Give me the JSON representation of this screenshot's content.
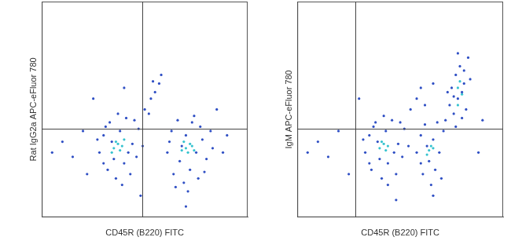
{
  "chart_data": [
    {
      "type": "scatter",
      "x_label": "CD45R (B220) FITC",
      "y_label": "Rat IgG2a APC-eFluor 780",
      "xlim": [
        0,
        100
      ],
      "ylim": [
        0,
        100
      ],
      "tick_labels": false,
      "grid": false,
      "gates": {
        "x": 49,
        "y": 41
      },
      "series": [
        {
          "color": "#2f4fc4",
          "x": [
            28,
            30,
            32,
            33,
            35,
            36,
            38,
            40,
            41,
            43,
            44,
            46,
            47,
            30,
            34,
            39,
            45,
            27,
            42,
            37,
            49,
            31,
            61,
            63,
            64,
            66,
            67,
            69,
            70,
            72,
            73,
            75,
            76,
            78,
            80,
            82,
            62,
            68,
            74,
            79,
            83,
            65,
            71,
            77,
            50,
            53,
            55,
            57,
            52,
            58,
            54,
            10,
            15,
            20,
            22,
            5,
            88,
            90,
            48,
            70,
            25,
            85,
            40
          ],
          "values": [
            30,
            38,
            22,
            44,
            27,
            18,
            40,
            25,
            46,
            20,
            34,
            28,
            41,
            25,
            35,
            15,
            45,
            36,
            30,
            48,
            33,
            42,
            30,
            40,
            20,
            45,
            26,
            16,
            38,
            22,
            44,
            30,
            18,
            36,
            27,
            40,
            35,
            33,
            47,
            21,
            32,
            14,
            12,
            42,
            50,
            55,
            58,
            62,
            48,
            66,
            63,
            35,
            28,
            40,
            20,
            30,
            30,
            38,
            10,
            5,
            55,
            50,
            60
          ]
        },
        {
          "color": "#36c3cf",
          "x": [
            35,
            37,
            38,
            36,
            39,
            40,
            34,
            70,
            72,
            71,
            73,
            69,
            74,
            68
          ],
          "values": [
            32,
            34,
            31,
            35,
            33,
            36,
            30,
            32,
            34,
            30,
            33,
            35,
            31,
            31
          ]
        }
      ]
    },
    {
      "type": "scatter",
      "x_label": "CD45R (B220) FITC",
      "y_label": "IgM APC-eFluor 780",
      "xlim": [
        0,
        100
      ],
      "ylim": [
        0,
        100
      ],
      "tick_labels": false,
      "grid": false,
      "gates": {
        "x": 28,
        "y": 41
      },
      "series": [
        {
          "color": "#2f4fc4",
          "x": [
            33,
            35,
            36,
            38,
            40,
            41,
            43,
            44,
            46,
            48,
            49,
            51,
            52,
            35,
            39,
            44,
            50,
            32,
            47,
            42,
            54,
            37,
            58,
            60,
            61,
            62,
            64,
            65,
            66,
            67,
            68,
            69,
            70,
            63,
            66,
            60,
            71,
            72,
            74,
            75,
            76,
            77,
            78,
            79,
            80,
            81,
            82,
            83,
            77,
            73,
            80,
            84,
            78,
            76,
            81,
            55,
            58,
            60,
            62,
            10,
            15,
            20,
            25,
            5,
            88,
            90,
            48,
            30,
            66
          ],
          "values": [
            30,
            38,
            22,
            44,
            27,
            18,
            40,
            25,
            45,
            20,
            34,
            28,
            41,
            25,
            35,
            15,
            44,
            36,
            30,
            47,
            33,
            42,
            30,
            38,
            20,
            43,
            26,
            15,
            36,
            22,
            44,
            30,
            18,
            33,
            10,
            25,
            40,
            45,
            52,
            60,
            48,
            66,
            55,
            70,
            58,
            62,
            50,
            74,
            42,
            58,
            46,
            64,
            76,
            56,
            68,
            50,
            55,
            60,
            52,
            35,
            28,
            40,
            20,
            30,
            30,
            45,
            8,
            55,
            62
          ]
        },
        {
          "color": "#36c3cf",
          "x": [
            40,
            42,
            43,
            41,
            44,
            64,
            65,
            63,
            66,
            78,
            79,
            80,
            78
          ],
          "values": [
            32,
            34,
            31,
            35,
            33,
            31,
            33,
            29,
            32,
            60,
            63,
            57,
            52
          ]
        }
      ]
    }
  ]
}
